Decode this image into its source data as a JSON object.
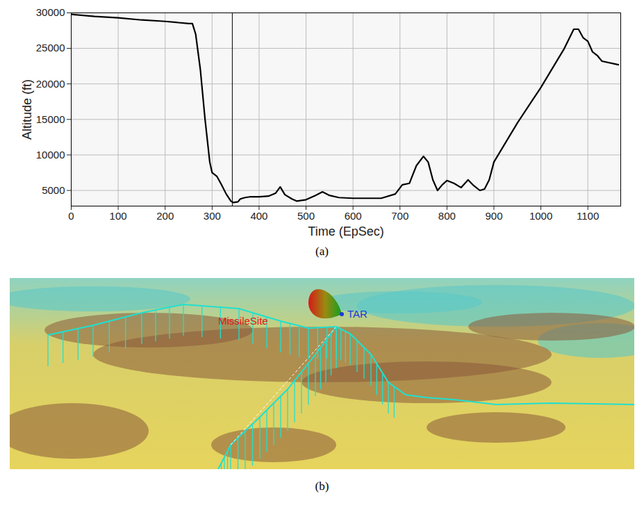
{
  "chart_data": {
    "type": "line",
    "panel_label": "(a)",
    "x_label": "Time (EpSec)",
    "y_label": "Altitude (ft)",
    "x": [
      0,
      50,
      100,
      150,
      200,
      250,
      258,
      265,
      275,
      285,
      295,
      300,
      310,
      320,
      330,
      340,
      345,
      355,
      360,
      370,
      380,
      400,
      420,
      435,
      445,
      455,
      470,
      480,
      500,
      520,
      535,
      550,
      570,
      600,
      630,
      660,
      690,
      705,
      720,
      735,
      750,
      760,
      770,
      780,
      790,
      800,
      815,
      830,
      845,
      855,
      870,
      880,
      890,
      900,
      950,
      1000,
      1050,
      1070,
      1080,
      1090,
      1100,
      1110,
      1120,
      1130,
      1165
    ],
    "series": [
      {
        "name": "Altitude",
        "color": "#000000",
        "values": [
          29800,
          29500,
          29300,
          29000,
          28800,
          28500,
          28500,
          27000,
          22000,
          15000,
          9000,
          7500,
          7000,
          5800,
          4500,
          3500,
          3300,
          3400,
          3800,
          4000,
          4100,
          4100,
          4200,
          4600,
          5500,
          4400,
          3800,
          3500,
          3700,
          4300,
          4800,
          4300,
          4000,
          3900,
          3900,
          3900,
          4500,
          5800,
          6000,
          8500,
          9800,
          9000,
          6500,
          5000,
          5800,
          6400,
          6000,
          5400,
          6500,
          5800,
          5000,
          5200,
          6500,
          9000,
          14500,
          19500,
          25000,
          27700,
          27700,
          26500,
          26000,
          24500,
          24000,
          23200,
          22700
        ]
      }
    ],
    "xlim": [
      0,
      1170
    ],
    "xticks": [
      0,
      100,
      200,
      300,
      400,
      500,
      600,
      700,
      800,
      900,
      1000,
      1100
    ],
    "ylim": [
      2800,
      30000
    ],
    "yticks": [
      5000,
      10000,
      15000,
      20000,
      25000,
      30000
    ],
    "cursor_x": 343,
    "grid": true
  },
  "map": {
    "panel_label": "(b)",
    "labels": [
      {
        "text": "MissileSite",
        "color": "#e01818"
      },
      {
        "text": "TAR",
        "color": "#1a3ad8"
      }
    ]
  }
}
